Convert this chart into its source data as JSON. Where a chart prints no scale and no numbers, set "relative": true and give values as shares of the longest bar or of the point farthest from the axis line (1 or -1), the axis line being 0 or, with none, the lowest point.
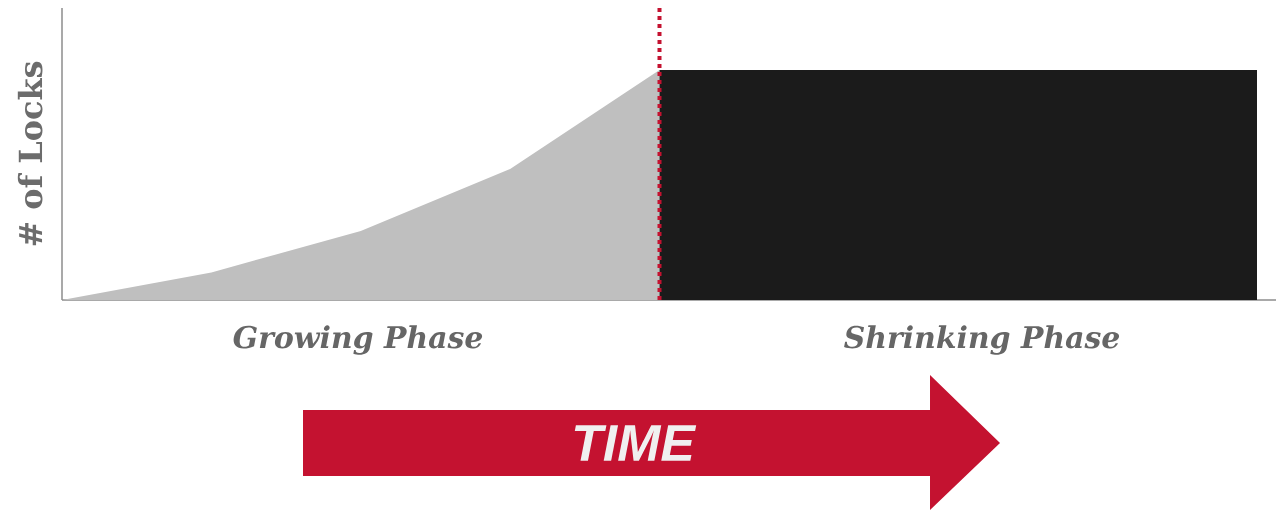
{
  "chart_data": {
    "type": "area",
    "relative": true,
    "ylabel": "# of Locks",
    "xlabel": "TIME",
    "categories": [
      null,
      null,
      null,
      null,
      null,
      null,
      null,
      null,
      null
    ],
    "series": [
      {
        "values": [
          0,
          0.12,
          0.3,
          0.57,
          1,
          null,
          null,
          null,
          null
        ],
        "color": "#bfbfbf"
      },
      {
        "values": [
          null,
          null,
          null,
          null,
          1,
          1,
          1,
          1,
          1
        ],
        "color": "#1b1b1b"
      }
    ],
    "annotations": [
      "Growing Phase",
      "Shrinking Phase"
    ]
  }
}
